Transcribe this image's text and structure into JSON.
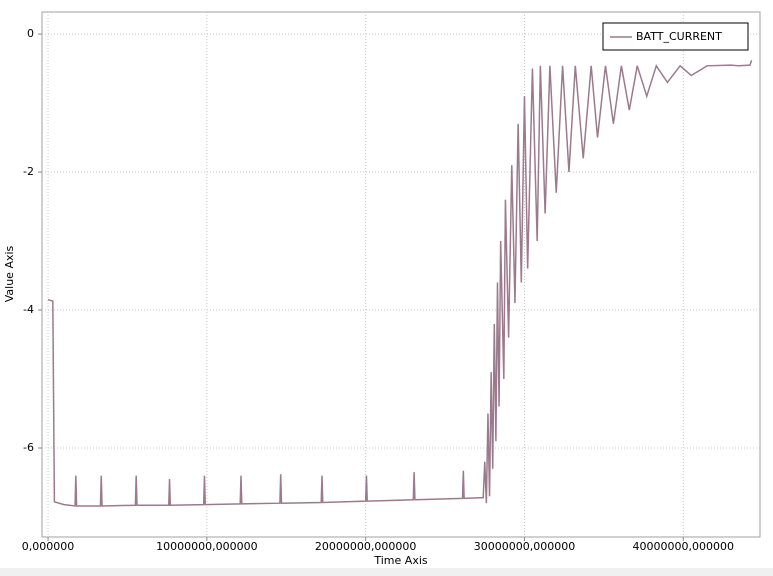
{
  "chart_data": {
    "type": "line",
    "x_label": "Time Axis",
    "y_label": "Value Axis",
    "series": [
      {
        "name": "BATT_CURRENT",
        "color": "#9c7a8d",
        "x": [
          0,
          300000,
          400000,
          1000000,
          1700000,
          1750000,
          1800000,
          3300000,
          3350000,
          3400000,
          5500000,
          5550000,
          5600000,
          7600000,
          7650000,
          7700000,
          9800000,
          9850000,
          9900000,
          12100000,
          12150000,
          12200000,
          14600000,
          14650000,
          14700000,
          17200000,
          17250000,
          17300000,
          20000000,
          20050000,
          20100000,
          23000000,
          23050000,
          23100000,
          26100000,
          26150000,
          26200000,
          27400000,
          27500000,
          27600000,
          27700000,
          27800000,
          27900000,
          28000000,
          28100000,
          28200000,
          28300000,
          28400000,
          28500000,
          28700000,
          28800000,
          29000000,
          29200000,
          29400000,
          29600000,
          29800000,
          30000000,
          30200000,
          30500000,
          30800000,
          31000000,
          31300000,
          31600000,
          32000000,
          32400000,
          32800000,
          33200000,
          33700000,
          34200000,
          34600000,
          35100000,
          35600000,
          36100000,
          36600000,
          37100000,
          37700000,
          38300000,
          39000000,
          39800000,
          40500000,
          41500000,
          43000000,
          43500000,
          44200000,
          44300000
        ],
        "values": [
          -3.85,
          -3.87,
          -6.78,
          -6.82,
          -6.84,
          -6.4,
          -6.84,
          -6.84,
          -6.4,
          -6.84,
          -6.83,
          -6.4,
          -6.83,
          -6.83,
          -6.45,
          -6.83,
          -6.82,
          -6.4,
          -6.82,
          -6.81,
          -6.4,
          -6.81,
          -6.8,
          -6.38,
          -6.8,
          -6.79,
          -6.4,
          -6.79,
          -6.77,
          -6.4,
          -6.77,
          -6.75,
          -6.35,
          -6.75,
          -6.73,
          -6.33,
          -6.73,
          -6.72,
          -6.2,
          -6.8,
          -5.5,
          -6.7,
          -4.9,
          -6.3,
          -4.2,
          -5.9,
          -3.6,
          -5.4,
          -3.0,
          -5.0,
          -2.4,
          -4.4,
          -1.9,
          -3.9,
          -1.3,
          -3.6,
          -0.9,
          -3.4,
          -0.5,
          -3.0,
          -0.46,
          -2.6,
          -0.46,
          -2.3,
          -0.46,
          -2.0,
          -0.46,
          -1.8,
          -0.46,
          -1.5,
          -0.46,
          -1.3,
          -0.46,
          -1.1,
          -0.46,
          -0.9,
          -0.46,
          -0.7,
          -0.46,
          -0.6,
          -0.46,
          -0.45,
          -0.46,
          -0.45,
          -0.38
        ]
      }
    ],
    "xlim": [
      -380000,
      44830000
    ],
    "ylim": [
      -7.29,
      0.32
    ],
    "xticks": [
      {
        "value": 0,
        "label": "0,000000"
      },
      {
        "value": 10000000,
        "label": "10000000,000000"
      },
      {
        "value": 20000000,
        "label": "20000000,000000"
      },
      {
        "value": 30000000,
        "label": "30000000,000000"
      },
      {
        "value": 40000000,
        "label": "40000000,000000"
      }
    ],
    "yticks": [
      0,
      -2,
      -4,
      -6
    ],
    "grid": true
  }
}
